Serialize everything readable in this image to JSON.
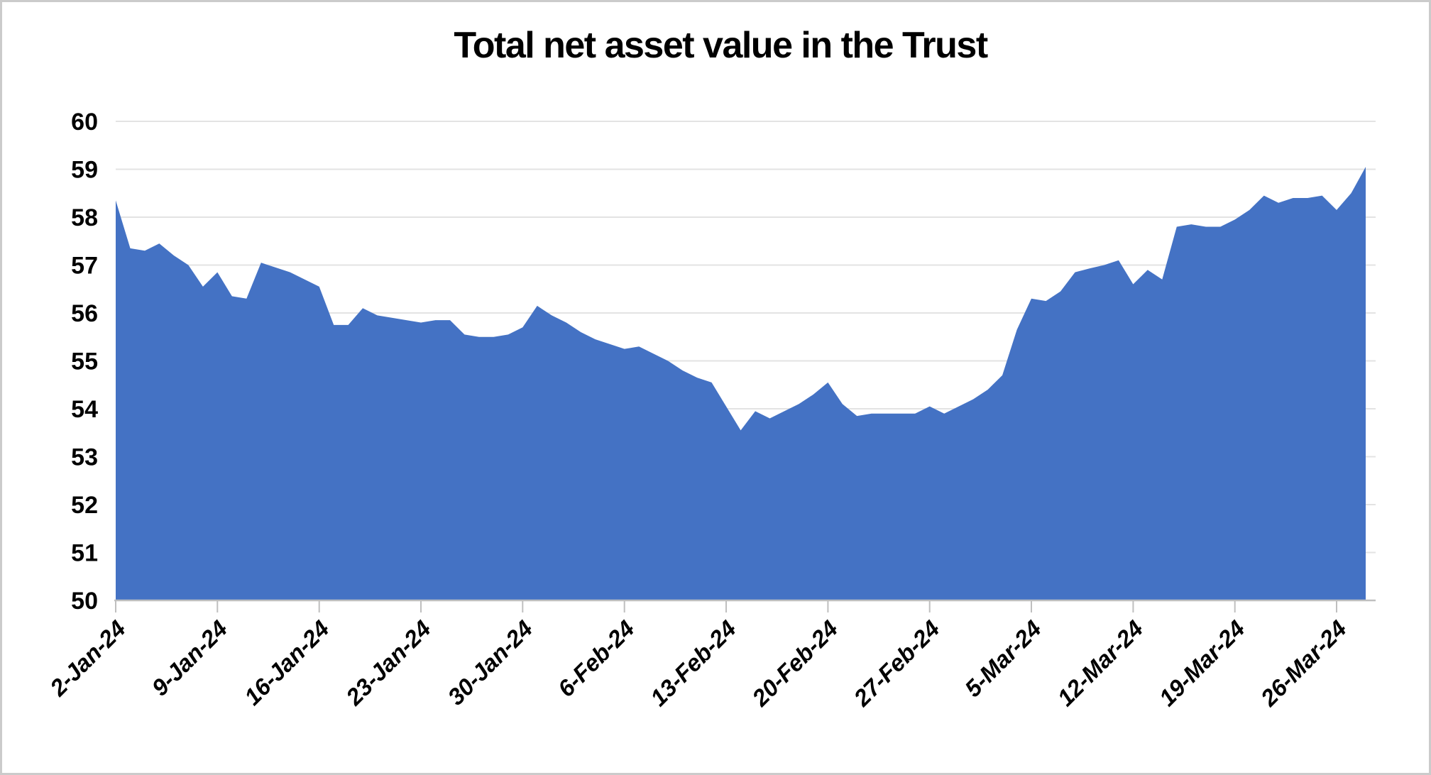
{
  "chart_data": {
    "type": "area",
    "title": "Total net asset value in the Trust",
    "xlabel": "",
    "ylabel": "",
    "ylim": [
      50,
      60
    ],
    "ytick_step": 1,
    "grid": true,
    "legend": false,
    "tick_every": 7,
    "tick_labels": [
      "2-Jan-24",
      "9-Jan-24",
      "16-Jan-24",
      "23-Jan-24",
      "30-Jan-24",
      "6-Feb-24",
      "13-Feb-24",
      "20-Feb-24",
      "27-Feb-24",
      "5-Mar-24",
      "12-Mar-24",
      "19-Mar-24",
      "26-Mar-24"
    ],
    "x": [
      "2-Jan-24",
      "3-Jan-24",
      "4-Jan-24",
      "5-Jan-24",
      "6-Jan-24",
      "7-Jan-24",
      "8-Jan-24",
      "9-Jan-24",
      "10-Jan-24",
      "11-Jan-24",
      "12-Jan-24",
      "13-Jan-24",
      "14-Jan-24",
      "15-Jan-24",
      "16-Jan-24",
      "17-Jan-24",
      "18-Jan-24",
      "19-Jan-24",
      "20-Jan-24",
      "21-Jan-24",
      "22-Jan-24",
      "23-Jan-24",
      "24-Jan-24",
      "25-Jan-24",
      "26-Jan-24",
      "27-Jan-24",
      "28-Jan-24",
      "29-Jan-24",
      "30-Jan-24",
      "31-Jan-24",
      "1-Feb-24",
      "2-Feb-24",
      "3-Feb-24",
      "4-Feb-24",
      "5-Feb-24",
      "6-Feb-24",
      "7-Feb-24",
      "8-Feb-24",
      "9-Feb-24",
      "10-Feb-24",
      "11-Feb-24",
      "12-Feb-24",
      "13-Feb-24",
      "14-Feb-24",
      "15-Feb-24",
      "16-Feb-24",
      "17-Feb-24",
      "18-Feb-24",
      "19-Feb-24",
      "20-Feb-24",
      "21-Feb-24",
      "22-Feb-24",
      "23-Feb-24",
      "24-Feb-24",
      "25-Feb-24",
      "26-Feb-24",
      "27-Feb-24",
      "28-Feb-24",
      "29-Feb-24",
      "1-Mar-24",
      "2-Mar-24",
      "3-Mar-24",
      "4-Mar-24",
      "5-Mar-24",
      "6-Mar-24",
      "7-Mar-24",
      "8-Mar-24",
      "9-Mar-24",
      "10-Mar-24",
      "11-Mar-24",
      "12-Mar-24",
      "13-Mar-24",
      "14-Mar-24",
      "15-Mar-24",
      "16-Mar-24",
      "17-Mar-24",
      "18-Mar-24",
      "19-Mar-24",
      "20-Mar-24",
      "21-Mar-24",
      "22-Mar-24",
      "23-Mar-24",
      "24-Mar-24",
      "25-Mar-24",
      "26-Mar-24",
      "27-Mar-24",
      "28-Mar-24"
    ],
    "values": [
      58.35,
      57.35,
      57.3,
      57.45,
      57.2,
      57.0,
      56.55,
      56.85,
      56.35,
      56.3,
      57.05,
      56.95,
      56.85,
      56.7,
      56.55,
      55.75,
      55.75,
      56.1,
      55.95,
      55.9,
      55.85,
      55.8,
      55.85,
      55.85,
      55.55,
      55.5,
      55.5,
      55.55,
      55.7,
      56.15,
      55.95,
      55.8,
      55.6,
      55.45,
      55.35,
      55.25,
      55.3,
      55.15,
      55.0,
      54.8,
      54.65,
      54.55,
      54.05,
      53.55,
      53.95,
      53.8,
      53.95,
      54.1,
      54.3,
      54.55,
      54.1,
      53.85,
      53.9,
      53.9,
      53.9,
      53.9,
      54.05,
      53.9,
      54.05,
      54.2,
      54.4,
      54.7,
      55.65,
      56.3,
      56.25,
      56.45,
      56.85,
      56.93,
      57.0,
      57.1,
      56.6,
      56.9,
      56.7,
      57.8,
      57.85,
      57.8,
      57.8,
      57.95,
      58.15,
      58.45,
      58.3,
      58.4,
      58.4,
      58.45,
      58.15,
      58.5,
      59.05
    ],
    "colors": {
      "area_fill": "#4472C4",
      "gridline": "#E3E3E3",
      "axis_line": "#BFBFBF",
      "tick": "#BFBFBF",
      "text": "#000000",
      "frame_border": "#CBCBCB",
      "background": "#FFFFFF"
    }
  }
}
